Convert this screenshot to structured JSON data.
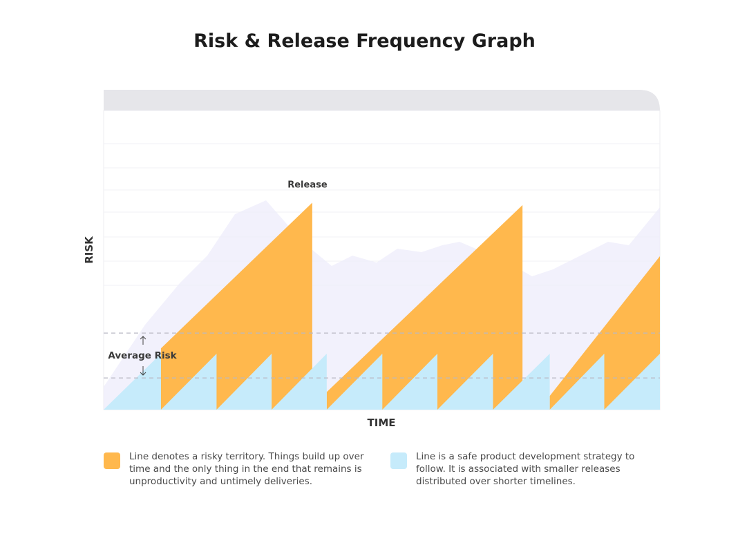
{
  "title": "Risk & Release Frequency Graph",
  "chart_data": {
    "type": "area",
    "title": "Risk & Release Frequency Graph",
    "xlabel": "TIME",
    "ylabel": "RISK",
    "xlim": [
      0,
      100
    ],
    "ylim": [
      0,
      100
    ],
    "grid": true,
    "series": [
      {
        "key": "risky",
        "color": "#ffb84d",
        "x": [
          10.3,
          10.3,
          37.5,
          37.5,
          40.1,
          40.1,
          75.3,
          75.3,
          80.2,
          80.2,
          100,
          100
        ],
        "y": [
          0,
          20.5,
          69.2,
          0,
          0,
          5.9,
          68.4,
          0,
          0,
          4.6,
          51.3,
          0
        ]
      },
      {
        "key": "safe",
        "color": "#c6ebfb",
        "x": [
          0,
          10.3,
          10.3,
          20.3,
          20.3,
          30.2,
          30.2,
          40.1,
          40.1,
          50.1,
          50.1,
          60.0,
          60.0,
          70.0,
          70.0,
          80.2,
          80.2,
          90.0,
          90.0,
          100,
          100
        ],
        "y": [
          0,
          18.7,
          0,
          18.7,
          0,
          18.7,
          0,
          18.7,
          0,
          18.7,
          0,
          18.7,
          0,
          18.7,
          0,
          18.7,
          0,
          18.7,
          0,
          18.7,
          0
        ]
      }
    ],
    "annotations": [
      {
        "text": "Release",
        "x": 34.9,
        "y": 74.2
      },
      {
        "text": "Average Risk",
        "x": 7.2,
        "y": 18
      }
    ],
    "reference_lines": [
      25.6,
      10.6
    ],
    "background_band_color": "#eeecfb",
    "legend_placement": "bottom"
  },
  "legend": [
    {
      "color": "#ffb84d",
      "text": "Line denotes a risky territory. Things build up over time and the only thing in the end that remains is unproductivity and untimely deliveries."
    },
    {
      "color": "#c6ebfb",
      "text": "Line is a safe product development strategy to follow. It is associated with smaller releases distributed over shorter timelines."
    }
  ],
  "icons": {
    "up": "arrow-up-icon",
    "down": "arrow-down-icon"
  }
}
